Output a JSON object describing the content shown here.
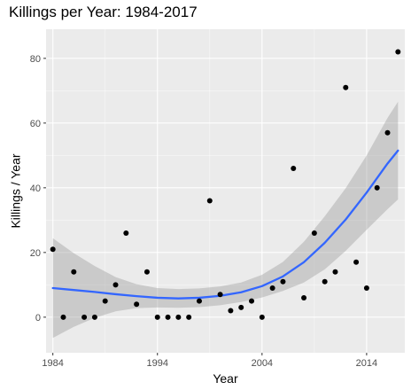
{
  "chart_data": {
    "type": "scatter",
    "title": "Killings per Year: 1984-2017",
    "xlabel": "Year",
    "ylabel": "Killings / Year",
    "xlim": [
      1983.35,
      2017.65
    ],
    "ylim": [
      -11,
      89
    ],
    "x_ticks": [
      1984,
      1994,
      2004,
      2014
    ],
    "y_ticks": [
      0,
      20,
      40,
      60,
      80
    ],
    "grid": true,
    "legend": "none",
    "colors": {
      "panel_background": "#ebebeb",
      "grid_major": "#ffffff",
      "points": "#000000",
      "trend_line": "#3366ff",
      "confidence_band": "#999999"
    },
    "series": [
      {
        "kind": "points",
        "x": [
          1984,
          1985,
          1986,
          1987,
          1988,
          1989,
          1990,
          1991,
          1992,
          1993,
          1994,
          1995,
          1996,
          1997,
          1998,
          1999,
          2000,
          2001,
          2002,
          2003,
          2004,
          2005,
          2006,
          2007,
          2008,
          2009,
          2010,
          2011,
          2012,
          2013,
          2014,
          2015,
          2016,
          2017
        ],
        "y": [
          21,
          0,
          14,
          0,
          0,
          5,
          10,
          26,
          4,
          14,
          0,
          0,
          0,
          0,
          5,
          36,
          7,
          2,
          3,
          5,
          0,
          9,
          11,
          46,
          6,
          26,
          11,
          14,
          71,
          17,
          9,
          40,
          57,
          82
        ]
      },
      {
        "kind": "trend",
        "x": [
          1984,
          1986,
          1988,
          1990,
          1992,
          1994,
          1996,
          1998,
          2000,
          2002,
          2004,
          2006,
          2008,
          2010,
          2012,
          2014,
          2016,
          2017
        ],
        "y": [
          9,
          8.4,
          7.8,
          7.1,
          6.5,
          6,
          5.8,
          6,
          6.6,
          7.7,
          9.6,
          12.6,
          17,
          23,
          30.2,
          38.5,
          47.5,
          51.5
        ],
        "lower": [
          -6.4,
          -3,
          -0.2,
          1.8,
          2.8,
          3,
          2.9,
          3.1,
          3.7,
          4.7,
          6.1,
          8.1,
          10.7,
          14.8,
          20.5,
          27,
          33.4,
          36.4
        ],
        "upper": [
          24.4,
          19.8,
          15.8,
          12.4,
          10.2,
          9,
          8.7,
          8.9,
          9.5,
          10.7,
          13.1,
          17.1,
          23.3,
          31.2,
          39.9,
          50,
          61.6,
          66.6
        ]
      }
    ]
  }
}
